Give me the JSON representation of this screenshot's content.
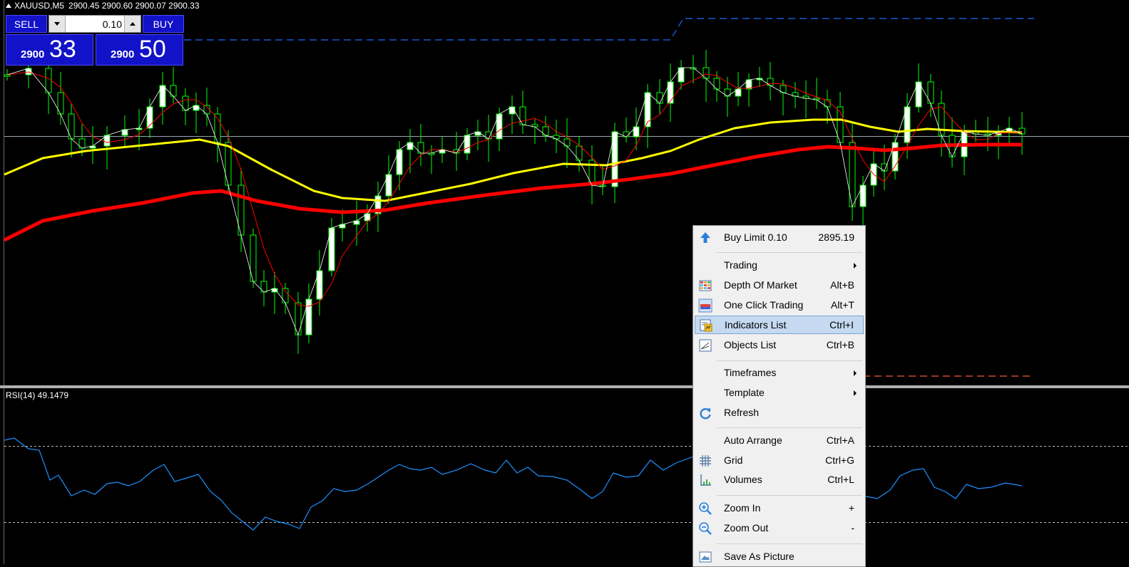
{
  "header": {
    "symbol": "XAUUSD,M5",
    "ohlc": "2900.45 2900.60 2900.07 2900.33"
  },
  "one_click": {
    "sell_label": "SELL",
    "buy_label": "BUY",
    "lot_value": "0.10",
    "sell_price_small": "2900",
    "sell_price_big": "33",
    "buy_price_small": "2900",
    "buy_price_big": "50"
  },
  "rsi": {
    "label": "RSI(14) 49.1479"
  },
  "context_menu": {
    "items": [
      {
        "label": "Buy Limit 0.10",
        "shortcut": "2895.19",
        "icon": "arrow-up-icon"
      },
      {
        "label": "Trading",
        "submenu": true
      },
      {
        "label": "Depth Of Market",
        "shortcut": "Alt+B",
        "icon": "depth-of-market-icon"
      },
      {
        "label": "One Click Trading",
        "shortcut": "Alt+T",
        "icon": "one-click-trading-icon"
      },
      {
        "label": "Indicators List",
        "shortcut": "Ctrl+I",
        "icon": "indicators-list-icon",
        "highlighted": true
      },
      {
        "label": "Objects List",
        "shortcut": "Ctrl+B",
        "icon": "objects-list-icon"
      },
      {
        "label": "Timeframes",
        "submenu": true
      },
      {
        "label": "Template",
        "submenu": true
      },
      {
        "label": "Refresh",
        "icon": "refresh-icon"
      },
      {
        "label": "Auto Arrange",
        "shortcut": "Ctrl+A"
      },
      {
        "label": "Grid",
        "shortcut": "Ctrl+G",
        "icon": "grid-icon"
      },
      {
        "label": "Volumes",
        "shortcut": "Ctrl+L",
        "icon": "volumes-icon"
      },
      {
        "label": "Zoom In",
        "shortcut": "+",
        "icon": "zoom-in-icon"
      },
      {
        "label": "Zoom Out",
        "shortcut": "-",
        "icon": "zoom-out-icon"
      },
      {
        "label": "Save As Picture",
        "icon": "save-picture-icon"
      }
    ]
  },
  "colors": {
    "bull_candle": "#ffffff",
    "bear_candle": "#000000",
    "wick": "#00ff00",
    "ma_fast": "#ff0000",
    "ma_mid": "#ffff00",
    "ma_slow": "#ff0000",
    "price_line": "#ffffff",
    "rsi_line": "#1e90ff",
    "buy_limit_line": "#1e6bff",
    "sell_line": "#ff5533"
  }
}
